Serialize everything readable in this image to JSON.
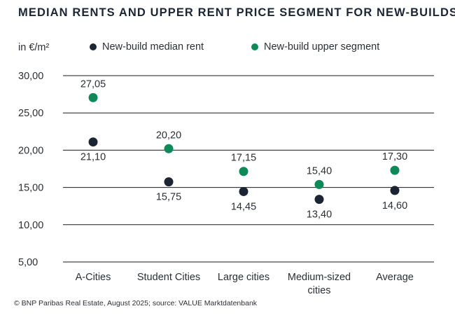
{
  "title": "MEDIAN RENTS AND UPPER RENT PRICE SEGMENT FOR NEW-BUILDS",
  "unit_label": "in €/m²",
  "source": "© BNP Paribas Real Estate, August 2025; source: VALUE Marktdatenbank",
  "colors": {
    "median": "#1c2533",
    "upper": "#0e8a59",
    "grid": "#1a1a1a",
    "text": "#2a2f36"
  },
  "chart_data": {
    "type": "scatter",
    "categories": [
      "A-Cities",
      "Student Cities",
      "Large cities",
      "Medium-sized cities",
      "Average"
    ],
    "category_lines": [
      [
        "A-Cities"
      ],
      [
        "Student Cities"
      ],
      [
        "Large cities"
      ],
      [
        "Medium-sized",
        "cities"
      ],
      [
        "Average"
      ]
    ],
    "series": [
      {
        "name": "New-build median rent",
        "values": [
          21.1,
          15.75,
          14.45,
          13.4,
          14.6
        ],
        "labels": [
          "21,10",
          "15,75",
          "14,45",
          "13,40",
          "14,60"
        ],
        "label_position": "below"
      },
      {
        "name": "New-build upper segment",
        "values": [
          27.05,
          20.2,
          17.15,
          15.4,
          17.3
        ],
        "labels": [
          "27,05",
          "20,20",
          "17,15",
          "15,40",
          "17,30"
        ],
        "label_position": "above"
      }
    ],
    "ylim": [
      5,
      30
    ],
    "yticks": [
      5,
      10,
      15,
      20,
      25,
      30
    ],
    "ytick_labels": [
      "5,00",
      "10,00",
      "15,00",
      "20,00",
      "25,00",
      "30,00"
    ],
    "grid": true,
    "legend_position": "top"
  }
}
